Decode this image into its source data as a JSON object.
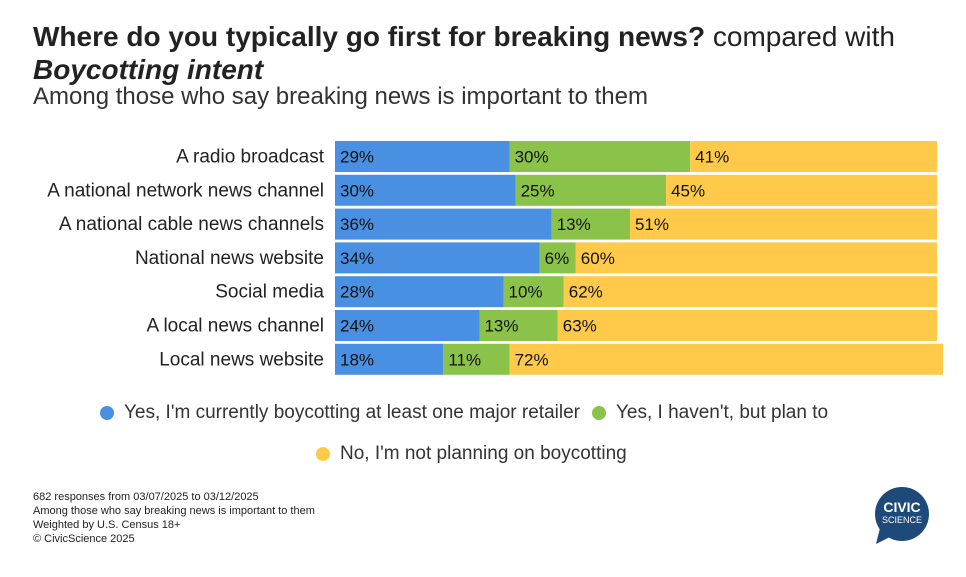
{
  "title_bold": "Where do you typically go first for breaking news?",
  "title_rest": " compared with",
  "title_italic": "Boycotting intent",
  "subtitle": "Among those who say breaking news is important to them",
  "chart_data": {
    "type": "bar",
    "orientation": "horizontal",
    "stacked": true,
    "normalized": true,
    "title": "Where do you typically go first for breaking news? compared with Boycotting intent",
    "subtitle": "Among those who say breaking news is important to them",
    "categories": [
      "A radio broadcast",
      "A national network news channel",
      "A national cable news channels",
      "National news website",
      "Social media",
      "A local news channel",
      "Local news website"
    ],
    "series": [
      {
        "name": "Yes, I'm currently boycotting at least one major retailer",
        "color": "#4a90e2",
        "values": [
          29,
          30,
          36,
          34,
          28,
          24,
          18
        ]
      },
      {
        "name": "Yes, I haven't, but plan to",
        "color": "#8bc34a",
        "values": [
          30,
          25,
          13,
          6,
          10,
          13,
          11
        ]
      },
      {
        "name": "No, I'm not planning on boycotting",
        "color": "#ffca4a",
        "values": [
          41,
          45,
          51,
          60,
          62,
          63,
          72
        ]
      }
    ],
    "value_suffix": "%",
    "xlim": [
      0,
      100
    ],
    "legend_position": "bottom"
  },
  "footer": {
    "line1": "682 responses from 03/07/2025 to 03/12/2025",
    "line2": "Among those who say breaking news is important to them",
    "line3": "Weighted by U.S. Census 18+",
    "line4": "© CivicScience 2025"
  },
  "logo": {
    "line1": "CIVIC",
    "line2": "SCIENCE",
    "color": "#1e4a7a"
  }
}
